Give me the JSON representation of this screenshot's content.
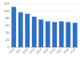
{
  "chart_data": {
    "type": "bar",
    "categories": [
      "2010",
      "2011",
      "2012",
      "2013",
      "2014",
      "2015",
      "2016",
      "2017",
      "2018",
      "2019"
    ],
    "values": [
      112,
      97,
      93,
      85,
      77,
      72,
      70,
      72,
      70,
      68
    ],
    "color": "#2f6fc4",
    "ylim": [
      0,
      120
    ],
    "yticks": [
      0,
      20,
      40,
      60,
      80,
      100,
      120
    ],
    "grid": true
  }
}
